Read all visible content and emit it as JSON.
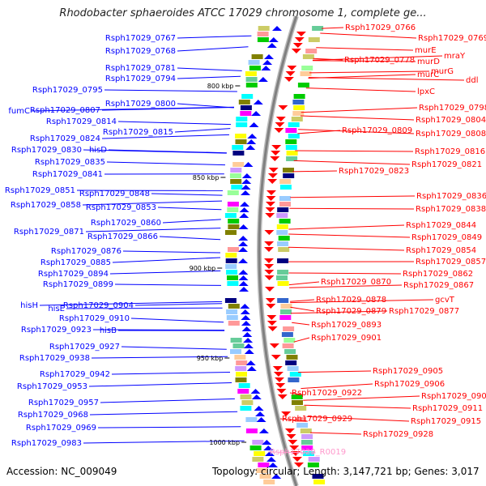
{
  "title": "Rhodobacter sphaeroides ATCC 17029 chromosome 1, complete ge...",
  "accession": "Accession: NC_009049",
  "topology": "Topology: circular; Length: 3,147,721 bp; Genes: 3,017",
  "colors": {
    "left_genes": "#0000ff",
    "right_genes": "#ff0000",
    "rna_gene": "#ff99cc",
    "backbone": "#808080"
  },
  "kbp_ticks": [
    {
      "label": "800 kbp"
    },
    {
      "label": "850 kbp"
    },
    {
      "label": "900 kbp"
    },
    {
      "label": "950 kbp"
    },
    {
      "label": "1000 kbp"
    }
  ],
  "left_labels": [
    {
      "text": "Rsph17029_0767"
    },
    {
      "text": "Rsph17029_0768"
    },
    {
      "text": "Rsph17029_0781"
    },
    {
      "text": "Rsph17029_0794"
    },
    {
      "text": "Rsph17029_0795"
    },
    {
      "text": "Rsph17029_0800"
    },
    {
      "text": "fumC"
    },
    {
      "text": "Rsph17029_0807"
    },
    {
      "text": "Rsph17029_0814"
    },
    {
      "text": "Rsph17029_0815"
    },
    {
      "text": "Rsph17029_0824"
    },
    {
      "text": "Rsph17029_0830"
    },
    {
      "text": "hisD"
    },
    {
      "text": "Rsph17029_0835"
    },
    {
      "text": "Rsph17029_0841"
    },
    {
      "text": "Rsph17029_0851"
    },
    {
      "text": "Rsph17029_0848"
    },
    {
      "text": "Rsph17029_0858"
    },
    {
      "text": "Rsph17029_0853"
    },
    {
      "text": "Rsph17029_0860"
    },
    {
      "text": "Rsph17029_0871"
    },
    {
      "text": "Rsph17029_0866"
    },
    {
      "text": "Rsph17029_0876"
    },
    {
      "text": "Rsph17029_0885"
    },
    {
      "text": "Rsph17029_0894"
    },
    {
      "text": "Rsph17029_0899"
    },
    {
      "text": "hisH"
    },
    {
      "text": "Rsph17029_0904"
    },
    {
      "text": "hisE"
    },
    {
      "text": "Rsph17029_0910"
    },
    {
      "text": "Rsph17029_0923"
    },
    {
      "text": "hisB"
    },
    {
      "text": "Rsph17029_0927"
    },
    {
      "text": "Rsph17029_0938"
    },
    {
      "text": "Rsph17029_0942"
    },
    {
      "text": "Rsph17029_0953"
    },
    {
      "text": "Rsph17029_0957"
    },
    {
      "text": "Rsph17029_0968"
    },
    {
      "text": "Rsph17029_0969"
    },
    {
      "text": "Rsph17029_0983"
    }
  ],
  "right_labels": [
    {
      "text": "Rsph17029_0766"
    },
    {
      "text": "Rsph17029_0769"
    },
    {
      "text": "murE"
    },
    {
      "text": "mraY"
    },
    {
      "text": "Rsph17029_0778"
    },
    {
      "text": "murD"
    },
    {
      "text": "murG"
    },
    {
      "text": "murC"
    },
    {
      "text": "ddl"
    },
    {
      "text": "lpxC"
    },
    {
      "text": "Rsph17029_0798"
    },
    {
      "text": "Rsph17029_0804"
    },
    {
      "text": "Rsph17029_0809"
    },
    {
      "text": "Rsph17029_0808"
    },
    {
      "text": "Rsph17029_0816"
    },
    {
      "text": "Rsph17029_0821"
    },
    {
      "text": "Rsph17029_0823"
    },
    {
      "text": "Rsph17029_0836"
    },
    {
      "text": "Rsph17029_0838"
    },
    {
      "text": "Rsph17029_0844"
    },
    {
      "text": "Rsph17029_0849"
    },
    {
      "text": "Rsph17029_0854"
    },
    {
      "text": "Rsph17029_0857"
    },
    {
      "text": "Rsph17029_0862"
    },
    {
      "text": "Rsph17029_0870"
    },
    {
      "text": "Rsph17029_0867"
    },
    {
      "text": "gcvT"
    },
    {
      "text": "Rsph17029_0878"
    },
    {
      "text": "Rsph17029_0879"
    },
    {
      "text": "Rsph17029_0877"
    },
    {
      "text": "Rsph17029_0893"
    },
    {
      "text": "Rsph17029_0901"
    },
    {
      "text": "Rsph17029_0905"
    },
    {
      "text": "Rsph17029_0906"
    },
    {
      "text": "Rsph17029_0922"
    },
    {
      "text": "Rsph17029_0907"
    },
    {
      "text": "Rsph17029_0911"
    },
    {
      "text": "Rsph17029_0929"
    },
    {
      "text": "Rsph17029_0915"
    },
    {
      "text": "Rsph17029_0928"
    },
    {
      "text": "Rsph17029_R0019"
    }
  ]
}
